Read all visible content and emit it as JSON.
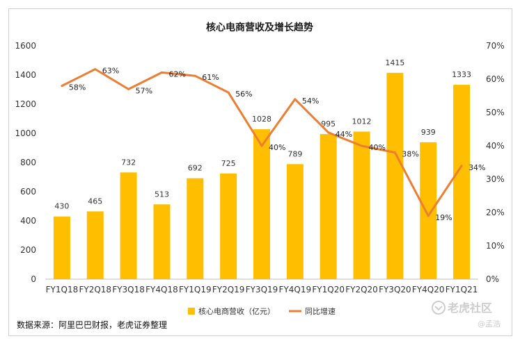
{
  "chart_data": {
    "type": "bar+line",
    "title": "核心电商营收及增长趋势",
    "categories": [
      "FY1Q18",
      "FY2Q18",
      "FY3Q18",
      "FY4Q18",
      "FY1Q19",
      "FY2Q19",
      "FY3Q19",
      "FY4Q19",
      "FY1Q20",
      "FY2Q20",
      "FY3Q20",
      "FY4Q20",
      "FY1Q21"
    ],
    "series": [
      {
        "name": "核心电商营收（亿元）",
        "type": "bar",
        "axis": "left",
        "values": [
          430,
          465,
          732,
          513,
          692,
          725,
          1028,
          789,
          995,
          1012,
          1415,
          939,
          1333
        ],
        "labels": [
          "430",
          "465",
          "732",
          "513",
          "692",
          "725",
          "1028",
          "789",
          "995",
          "1012",
          "1415",
          "939",
          "1333"
        ]
      },
      {
        "name": "同比增速",
        "type": "line",
        "axis": "right",
        "values": [
          58,
          63,
          57,
          62,
          61,
          56,
          40,
          54,
          44,
          40,
          38,
          19,
          34
        ],
        "labels": [
          "58%",
          "63%",
          "57%",
          "62%",
          "61%",
          "56%",
          "40%",
          "54%",
          "44%",
          "40%",
          "38%",
          "19%",
          "34%"
        ]
      }
    ],
    "ylim_left": [
      0,
      1600
    ],
    "yticks_left": [
      "0",
      "200",
      "400",
      "600",
      "800",
      "1000",
      "1200",
      "1400",
      "1600"
    ],
    "ylim_right": [
      0,
      70
    ],
    "yticks_right": [
      "0%",
      "10%",
      "20%",
      "30%",
      "40%",
      "50%",
      "60%",
      "70%"
    ],
    "grid": false,
    "legend_position": "bottom",
    "colors": {
      "bar": "#FFBF00",
      "line": "#ED7D31"
    }
  },
  "source": "数据来源：阿里巴巴财报，老虎证券整理",
  "watermark": {
    "brand": "老虎社区",
    "author": "@孟浩"
  }
}
